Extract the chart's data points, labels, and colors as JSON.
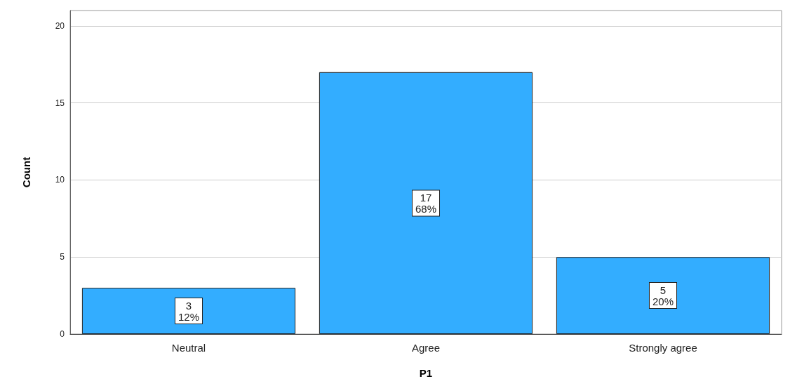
{
  "chart_data": {
    "type": "bar",
    "xlabel": "P1",
    "ylabel": "Count",
    "categories": [
      "Neutral",
      "Agree",
      "Strongly agree"
    ],
    "values": [
      3,
      17,
      5
    ],
    "value_labels": [
      "3\n12%",
      "17\n68%",
      "5\n20%"
    ],
    "color": "#33adff",
    "ylim": [
      0,
      21
    ],
    "yticks": [
      0,
      5,
      10,
      15,
      20
    ],
    "grid": "y"
  }
}
